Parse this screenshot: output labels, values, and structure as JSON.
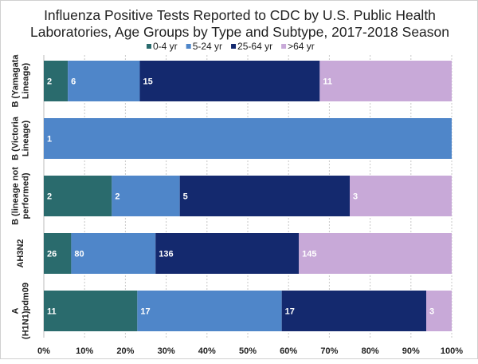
{
  "chart_data": {
    "type": "stacked-bar-horizontal-100",
    "title": [
      "Influenza Positive Tests Reported to CDC by U.S. Public Health",
      "Laboratories, Age Groups by Type and Subtype, 2017-2018 Season"
    ],
    "categories": [
      [
        "B (Yamagata",
        "Lineage)"
      ],
      [
        "B (Victoria",
        "Lineage)"
      ],
      [
        "B (lineage not",
        "performed)"
      ],
      [
        "AH3N2"
      ],
      [
        "A",
        "(H1N1)pdm09"
      ]
    ],
    "series": [
      {
        "name": "0-4 yr",
        "color": "#2a6b6d",
        "values": [
          2,
          0,
          2,
          26,
          11
        ]
      },
      {
        "name": "5-24 yr",
        "color": "#4f86c9",
        "values": [
          6,
          1,
          2,
          80,
          17
        ]
      },
      {
        "name": "25-64 yr",
        "color": "#14296e",
        "values": [
          15,
          0,
          5,
          136,
          17
        ]
      },
      {
        "name": ">64 yr",
        "color": "#c8a9d8",
        "values": [
          11,
          0,
          3,
          145,
          3
        ]
      }
    ],
    "xlim": [
      0,
      100
    ],
    "xticks": [
      "0%",
      "10%",
      "20%",
      "30%",
      "40%",
      "50%",
      "60%",
      "70%",
      "80%",
      "90%",
      "100%"
    ],
    "grid": true,
    "legend": "top"
  }
}
